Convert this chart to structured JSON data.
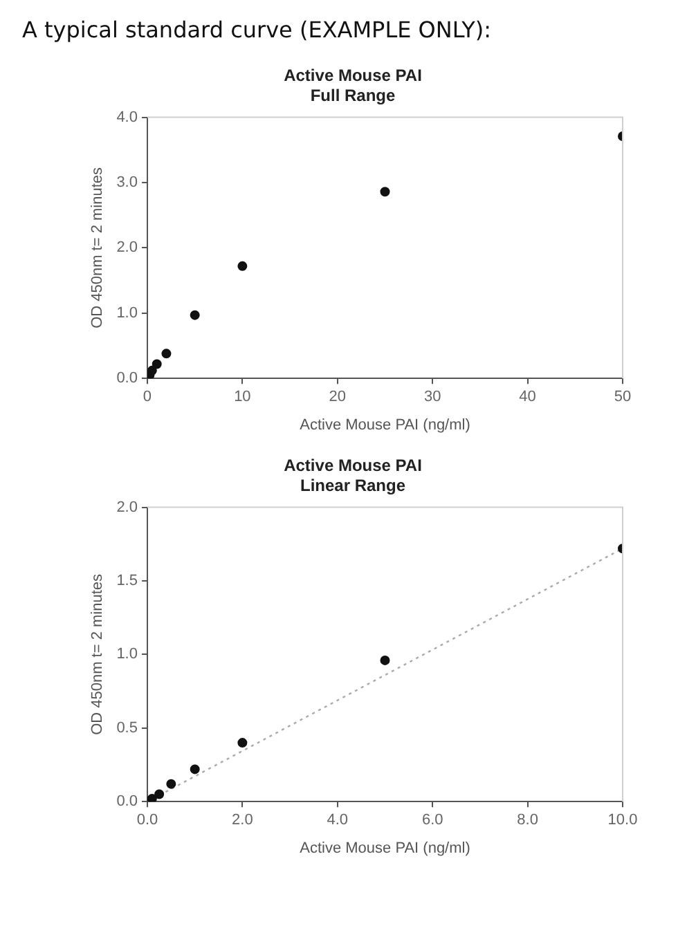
{
  "chart_data": [
    {
      "type": "scatter",
      "title": "Active Mouse PAI",
      "subtitle": "Full Range",
      "xlabel": "Active Mouse PAI (ng/ml)",
      "ylabel": "OD 450nm t= 2 minutes",
      "annotations": [
        "A typical standard curve (EXAMPLE ONLY):"
      ],
      "series": [
        {
          "color": "#111111",
          "x": [
            0.25,
            0.5,
            1,
            2,
            5,
            10,
            25,
            50
          ],
          "values": [
            0.05,
            0.12,
            0.22,
            0.38,
            0.97,
            1.72,
            2.86,
            3.71
          ]
        }
      ],
      "xlim": [
        0,
        50
      ],
      "xticks": [
        0,
        10,
        20,
        30,
        40,
        50
      ],
      "ylim": [
        0,
        4
      ],
      "yticks": [
        {
          "value": 0,
          "label": "0.0"
        },
        {
          "value": 1,
          "label": "1.0"
        },
        {
          "value": 2,
          "label": "2.0"
        },
        {
          "value": 3,
          "label": "3.0"
        },
        {
          "value": 4,
          "label": "4.0"
        }
      ],
      "grid": false,
      "legend": false,
      "marker": "circle"
    },
    {
      "type": "scatter",
      "title": "Active Mouse PAI",
      "subtitle": "Linear Range",
      "xlabel": "Active Mouse PAI (ng/ml)",
      "ylabel": "OD 450nm t= 2 minutes",
      "series": [
        {
          "color": "#111111",
          "x": [
            0,
            0.1,
            0.25,
            0.5,
            1,
            2,
            5,
            10
          ],
          "values": [
            0.0,
            0.02,
            0.05,
            0.12,
            0.22,
            0.4,
            0.96,
            1.72
          ]
        },
        {
          "type": "line",
          "color": "#aaaaaa",
          "line_style": "dotted",
          "marker": "none",
          "x": [
            0,
            10
          ],
          "values": [
            0.0,
            1.72
          ]
        }
      ],
      "xlim": [
        0,
        10
      ],
      "xticks": [
        {
          "value": 0,
          "label": "0.0"
        },
        {
          "value": 2,
          "label": "2.0"
        },
        {
          "value": 4,
          "label": "4.0"
        },
        {
          "value": 6,
          "label": "6.0"
        },
        {
          "value": 8,
          "label": "8.0"
        },
        {
          "value": 10,
          "label": "10.0"
        }
      ],
      "ylim": [
        0,
        2
      ],
      "yticks": [
        {
          "value": 0,
          "label": "0.0"
        },
        {
          "value": 0.5,
          "label": "0.5"
        },
        {
          "value": 1,
          "label": "1.0"
        },
        {
          "value": 1.5,
          "label": "1.5"
        },
        {
          "value": 2,
          "label": "2.0"
        }
      ],
      "grid": false,
      "legend": false,
      "marker": "circle"
    }
  ]
}
